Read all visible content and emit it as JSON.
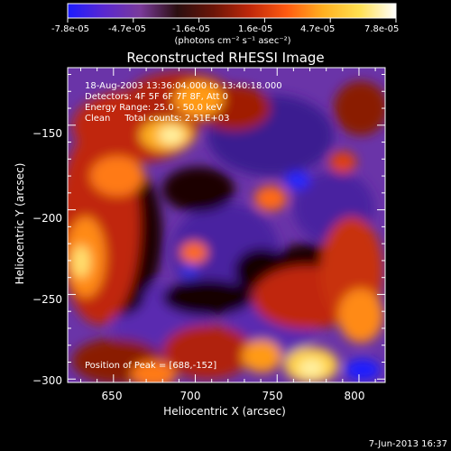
{
  "colorbar": {
    "tick_labels": [
      "-7.8e-05",
      "-4.7e-05",
      "-1.6e-05",
      "1.6e-05",
      "4.7e-05",
      "7.8e-05"
    ],
    "unit_label": "(photons cm⁻² s⁻¹ asec⁻²)",
    "colors": [
      "#1c1cff",
      "#5a28d0",
      "#7a3a9a",
      "#2a0f10",
      "#6b1508",
      "#c0280a",
      "#ff5a10",
      "#ffb020",
      "#ffe050",
      "#ffffff"
    ]
  },
  "chart_data": {
    "type": "heatmap",
    "title": "Reconstructed RHESSI Image",
    "xlabel": "Heliocentric X (arcsec)",
    "ylabel": "Heliocentric Y (arcsec)",
    "xlim": [
      622,
      816
    ],
    "ylim": [
      -302,
      -116
    ],
    "x_ticks": [
      650,
      700,
      750,
      800
    ],
    "y_ticks": [
      -150,
      -200,
      -250,
      -300
    ],
    "x_tick_labels": [
      "650",
      "700",
      "750",
      "800"
    ],
    "y_tick_labels": [
      "−150",
      "−200",
      "−250",
      "−300"
    ],
    "annotations": [
      "18-Aug-2003 13:36:04.000 to 13:40:18.000",
      "Detectors: 4F 5F 6F 7F 8F, Att 0",
      "Energy Range: 25.0 - 50.0 keV",
      "Clean     Total counts: 2.51E+03"
    ],
    "peak_label": "Position of Peak = [688,-152]",
    "peak_position": [
      688,
      -152
    ],
    "value_range": [
      -7.8e-05,
      7.8e-05
    ]
  },
  "footer": {
    "date": "7-Jun-2013 16:37"
  }
}
